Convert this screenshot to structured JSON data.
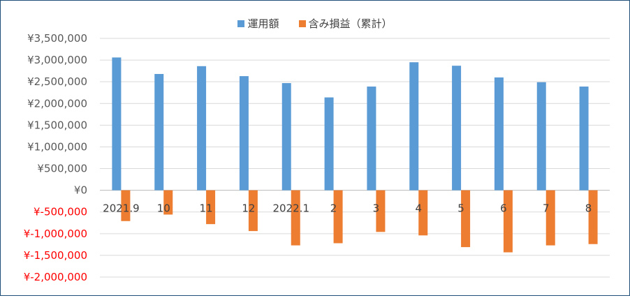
{
  "chart_data": {
    "type": "bar",
    "categories": [
      "2021.9",
      "10",
      "11",
      "12",
      "2022.1",
      "2",
      "3",
      "4",
      "5",
      "6",
      "7",
      "8"
    ],
    "series": [
      {
        "name": "運用額",
        "color": "#5b9bd5",
        "values": [
          3060000,
          2680000,
          2860000,
          2630000,
          2470000,
          2140000,
          2390000,
          2950000,
          2870000,
          2600000,
          2490000,
          2390000
        ]
      },
      {
        "name": "含み損益（累計）",
        "color": "#ed7d31",
        "values": [
          -710000,
          -560000,
          -780000,
          -940000,
          -1270000,
          -1220000,
          -960000,
          -1040000,
          -1310000,
          -1430000,
          -1270000,
          -1240000
        ]
      }
    ],
    "y_ticks": [
      {
        "value": 3500000,
        "label": "¥3,500,000"
      },
      {
        "value": 3000000,
        "label": "¥3,000,000"
      },
      {
        "value": 2500000,
        "label": "¥2,500,000"
      },
      {
        "value": 2000000,
        "label": "¥2,000,000"
      },
      {
        "value": 1500000,
        "label": "¥1,500,000"
      },
      {
        "value": 1000000,
        "label": "¥1,000,000"
      },
      {
        "value": 500000,
        "label": "¥500,000"
      },
      {
        "value": 0,
        "label": "¥0"
      },
      {
        "value": -500000,
        "label": "¥-500,000"
      },
      {
        "value": -1000000,
        "label": "¥-1,000,000"
      },
      {
        "value": -1500000,
        "label": "¥-1,500,000"
      },
      {
        "value": -2000000,
        "label": "¥-2,000,000"
      }
    ],
    "ylim": [
      -2000000,
      3500000
    ],
    "grid": true,
    "legend_position": "top",
    "negative_label_color": "#ff0000",
    "positive_label_color": "#595959",
    "gridline_color": "#d9d9d9"
  }
}
